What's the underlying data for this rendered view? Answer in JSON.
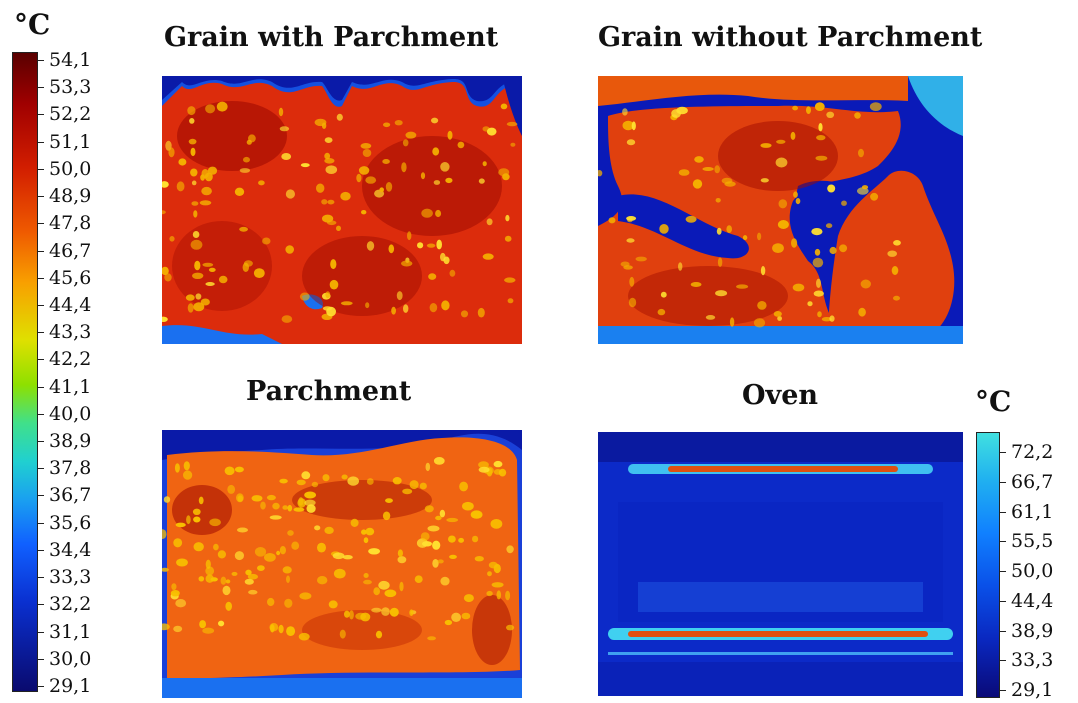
{
  "left_scale": {
    "unit": "°C",
    "ticks": [
      "54,1",
      "53,3",
      "52,2",
      "51,1",
      "50,0",
      "48,9",
      "47,8",
      "46,7",
      "45,6",
      "44,4",
      "43,3",
      "42,2",
      "41,1",
      "40,0",
      "38,9",
      "37,8",
      "36,7",
      "35,6",
      "34,4",
      "33,3",
      "32,2",
      "31,1",
      "30,0",
      "29,1"
    ]
  },
  "right_scale": {
    "unit": "°C",
    "ticks": [
      "72,2",
      "66,7",
      "61,1",
      "55,5",
      "50,0",
      "44,4",
      "38,9",
      "33,3",
      "29,1"
    ]
  },
  "panels": {
    "grain_with_parchment": {
      "title": "Grain with Parchment"
    },
    "grain_without_parchment": {
      "title": "Grain without Parchment"
    },
    "parchment": {
      "title": "Parchment"
    },
    "oven": {
      "title": "Oven"
    }
  },
  "colors": {
    "scale_hot": "#5a0000",
    "scale_cold": "#0a0a6e",
    "grain_base": "#e0300e",
    "parchment_base": "#f05a10",
    "oven_base": "#1030d8",
    "oven_highlight": "#5fe0e0"
  }
}
